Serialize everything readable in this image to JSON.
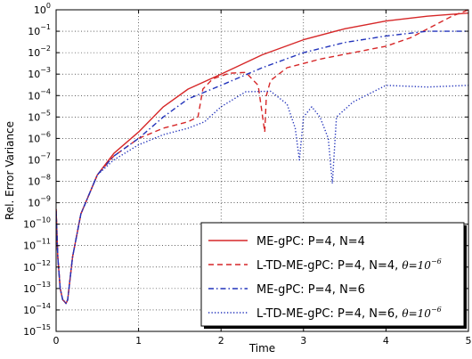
{
  "chart_data": {
    "type": "line",
    "xlabel": "Time",
    "ylabel": "Rel. Error Variance",
    "x_scale": "linear",
    "y_scale": "log",
    "xlim": [
      0,
      5
    ],
    "ylim": [
      1e-15,
      1
    ],
    "x_ticks": [
      0,
      1,
      2,
      3,
      4,
      5
    ],
    "y_tick_exponents": [
      0,
      -1,
      -2,
      -3,
      -4,
      -5,
      -6,
      -7,
      -8,
      -9,
      -10,
      -11,
      -12,
      -13,
      -14,
      -15
    ],
    "grid": true,
    "legend_position": "bottom-right",
    "series": [
      {
        "name": "ME-gPC: P=4, N=4",
        "color": "#d62728",
        "style": "solid",
        "x": [
          0,
          0.02,
          0.05,
          0.08,
          0.1,
          0.12,
          0.14,
          0.2,
          0.3,
          0.5,
          0.7,
          1.0,
          1.3,
          1.6,
          2.0,
          2.5,
          3.0,
          3.5,
          4.0,
          4.5,
          5.0
        ],
        "y": [
          5e-10,
          3e-12,
          1e-13,
          3e-14,
          2.5e-14,
          2e-14,
          3e-14,
          3e-12,
          3e-10,
          2e-08,
          2e-07,
          2e-06,
          3e-05,
          0.0002,
          0.001,
          0.008,
          0.04,
          0.13,
          0.3,
          0.5,
          0.7
        ]
      },
      {
        "name": "L-TD-ME-gPC: P=4, N=4, θ=10^-6",
        "name_parts": [
          "L-TD-ME-gPC: P=4, N=4, ",
          "θ=10",
          "−6"
        ],
        "color": "#d62728",
        "style": "dashed",
        "x": [
          0,
          0.02,
          0.05,
          0.08,
          0.1,
          0.12,
          0.14,
          0.2,
          0.3,
          0.5,
          0.7,
          1.0,
          1.3,
          1.6,
          1.72,
          1.78,
          1.9,
          2.1,
          2.3,
          2.45,
          2.53,
          2.55,
          2.6,
          2.8,
          3.2,
          3.6,
          4.0,
          4.3,
          4.6,
          4.8,
          5.0
        ],
        "y": [
          5e-10,
          3e-12,
          1e-13,
          3e-14,
          2.5e-14,
          2e-14,
          3e-14,
          3e-12,
          3e-10,
          2e-08,
          1.5e-07,
          1e-06,
          3e-06,
          6e-06,
          1e-05,
          0.0002,
          0.0006,
          0.0011,
          0.0012,
          0.0003,
          2e-06,
          0.0001,
          0.0005,
          0.002,
          0.005,
          0.01,
          0.02,
          0.05,
          0.2,
          0.5,
          1.0
        ]
      },
      {
        "name": "ME-gPC: P=4, N=6",
        "color": "#2233bb",
        "style": "dashdot",
        "x": [
          0,
          0.02,
          0.05,
          0.08,
          0.1,
          0.12,
          0.14,
          0.2,
          0.3,
          0.5,
          0.7,
          1.0,
          1.3,
          1.6,
          2.0,
          2.5,
          3.0,
          3.5,
          4.0,
          4.5,
          5.0
        ],
        "y": [
          4e-10,
          3e-12,
          1e-13,
          3e-14,
          2.5e-14,
          2e-14,
          3e-14,
          3e-12,
          3e-10,
          2e-08,
          1.5e-07,
          1e-06,
          1e-05,
          7e-05,
          0.0003,
          0.002,
          0.01,
          0.03,
          0.06,
          0.1,
          0.1
        ]
      },
      {
        "name": "L-TD-ME-gPC: P=4, N=6, θ=10^-6",
        "name_parts": [
          "L-TD-ME-gPC: P=4, N=6, ",
          "θ=10",
          "−6"
        ],
        "color": "#2233bb",
        "style": "dotted",
        "x": [
          0,
          0.02,
          0.05,
          0.08,
          0.1,
          0.12,
          0.14,
          0.2,
          0.3,
          0.5,
          0.7,
          1.0,
          1.3,
          1.6,
          1.8,
          2.0,
          2.3,
          2.6,
          2.8,
          2.9,
          2.95,
          3.0,
          3.1,
          3.2,
          3.3,
          3.35,
          3.4,
          3.6,
          4.0,
          4.5,
          5.0
        ],
        "y": [
          4e-10,
          3e-12,
          1e-13,
          3e-14,
          2.5e-14,
          2e-14,
          3e-14,
          3e-12,
          3e-10,
          2e-08,
          1e-07,
          5e-07,
          1.5e-06,
          3e-06,
          6e-06,
          3e-05,
          0.00015,
          0.00016,
          4e-05,
          3e-06,
          1e-07,
          1e-05,
          3e-05,
          1e-05,
          1e-06,
          8e-09,
          1e-05,
          5e-05,
          0.0003,
          0.00025,
          0.0003
        ]
      }
    ]
  }
}
